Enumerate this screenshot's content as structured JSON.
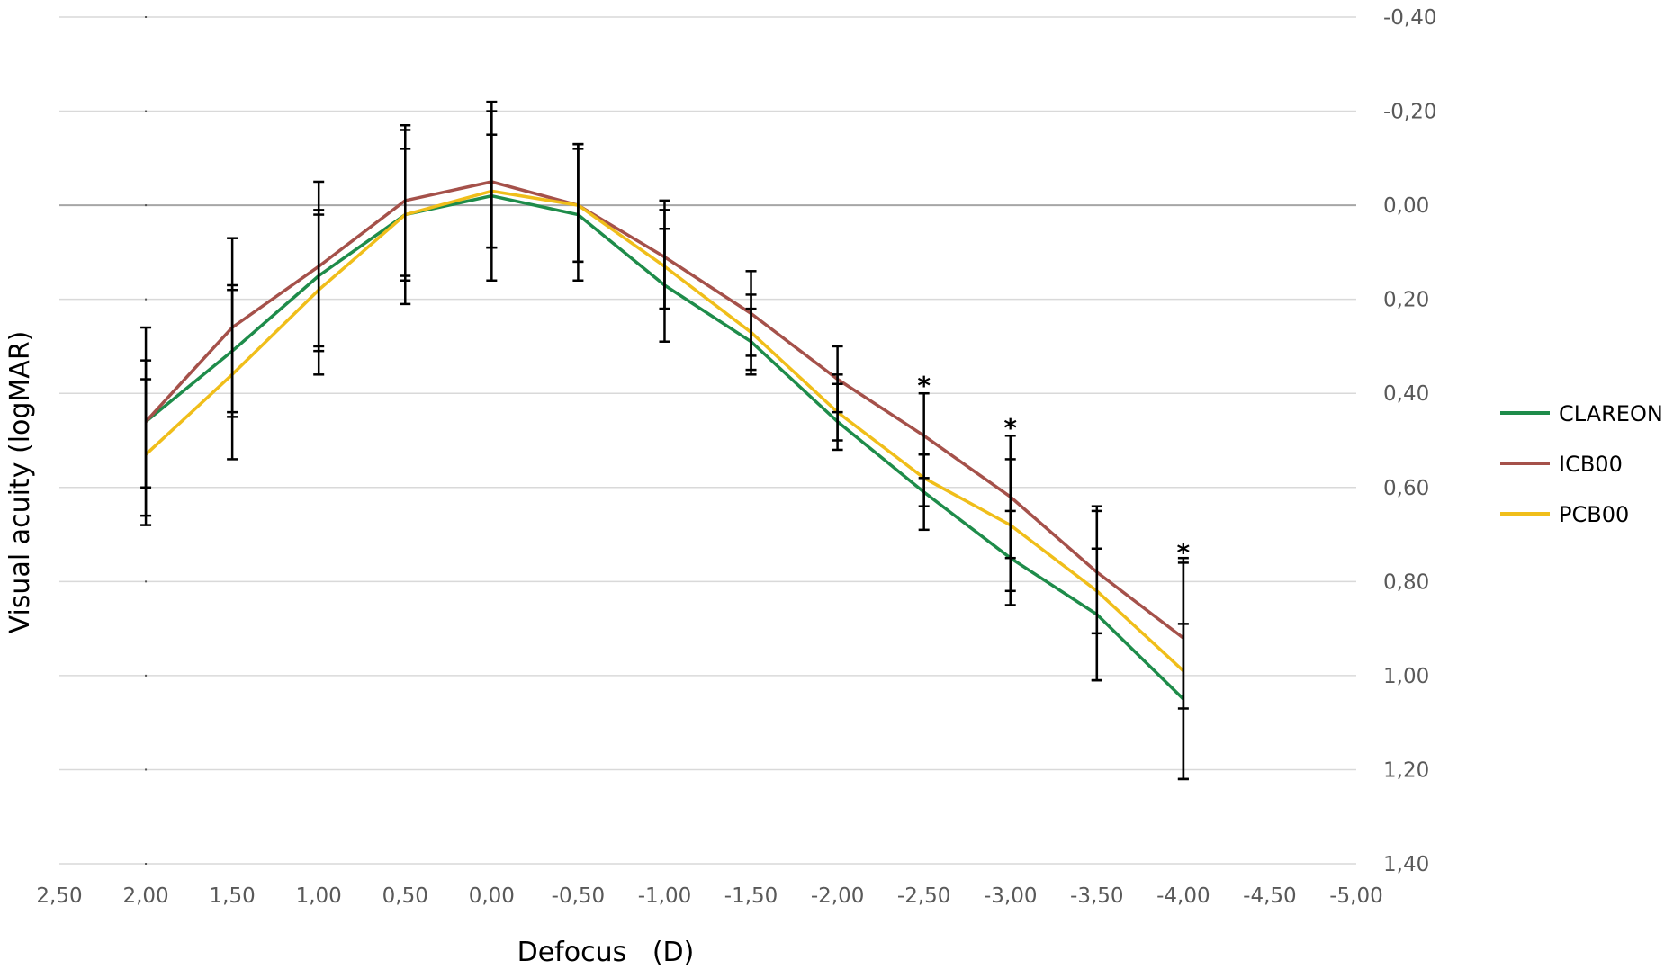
{
  "chart_data": {
    "type": "line",
    "xlabel": "Defocus   (D)",
    "ylabel": "Visual acuity (logMAR)",
    "xlim": [
      2.5,
      -5.0
    ],
    "ylim": [
      -0.4,
      1.4
    ],
    "y_inverted": true,
    "grid": true,
    "legend_position": "right",
    "x_ticks": [
      "2,50",
      "2,00",
      "1,50",
      "1,00",
      "0,50",
      "0,00",
      "-0,50",
      "-1,00",
      "-1,50",
      "-2,00",
      "-2,50",
      "-3,00",
      "-3,50",
      "-4,00",
      "-4,50",
      "-5,00"
    ],
    "x_tick_values": [
      2.5,
      2.0,
      1.5,
      1.0,
      0.5,
      0.0,
      -0.5,
      -1.0,
      -1.5,
      -2.0,
      -2.5,
      -3.0,
      -3.5,
      -4.0,
      -4.5,
      -5.0
    ],
    "y_ticks": [
      "-0,40",
      "-0,20",
      "0,00",
      "0,20",
      "0,40",
      "0,60",
      "0,80",
      "1,00",
      "1,20",
      "1,40"
    ],
    "y_tick_values": [
      -0.4,
      -0.2,
      0.0,
      0.2,
      0.4,
      0.6,
      0.8,
      1.0,
      1.2,
      1.4
    ],
    "x": [
      2.0,
      1.5,
      1.0,
      0.5,
      0.0,
      -0.5,
      -1.0,
      -1.5,
      -2.0,
      -2.5,
      -3.0,
      -3.5,
      -4.0
    ],
    "series": [
      {
        "name": "CLAREON",
        "color": "#1e8c4a",
        "values": [
          0.46,
          0.31,
          0.15,
          0.02,
          -0.02,
          0.02,
          0.17,
          0.29,
          0.46,
          0.61,
          0.75,
          0.87,
          1.05
        ],
        "err_low": [
          0.33,
          0.18,
          0.01,
          -0.16,
          -0.2,
          -0.13,
          0.05,
          0.22,
          0.38,
          0.53,
          0.65,
          0.73,
          0.89
        ],
        "err_high": [
          0.6,
          0.44,
          0.31,
          0.16,
          0.16,
          0.16,
          0.29,
          0.36,
          0.5,
          0.69,
          0.85,
          1.01,
          1.22
        ]
      },
      {
        "name": "ICB00",
        "color": "#a5514a",
        "values": [
          0.46,
          0.26,
          0.13,
          -0.01,
          -0.05,
          0.0,
          0.11,
          0.23,
          0.37,
          0.49,
          0.62,
          0.78,
          0.92
        ],
        "err_low": [
          0.26,
          0.07,
          -0.05,
          -0.17,
          -0.22,
          -0.13,
          -0.01,
          0.14,
          0.3,
          0.4,
          0.49,
          0.64,
          0.75
        ],
        "err_high": [
          0.66,
          0.45,
          0.3,
          0.15,
          0.09,
          0.12,
          0.22,
          0.32,
          0.44,
          0.58,
          0.75,
          0.91,
          1.07
        ]
      },
      {
        "name": "PCB00",
        "color": "#f0be1a",
        "values": [
          0.53,
          0.36,
          0.18,
          0.02,
          -0.03,
          0.0,
          0.13,
          0.27,
          0.44,
          0.58,
          0.68,
          0.82,
          0.99
        ],
        "err_low": [
          0.37,
          0.17,
          0.02,
          -0.12,
          -0.15,
          -0.12,
          0.01,
          0.19,
          0.36,
          0.53,
          0.54,
          0.65,
          0.76
        ],
        "err_high": [
          0.68,
          0.54,
          0.36,
          0.21,
          0.09,
          0.12,
          0.22,
          0.35,
          0.52,
          0.64,
          0.82,
          1.01,
          1.22
        ]
      }
    ],
    "annotations": [
      {
        "text": "*",
        "x": -2.5,
        "y": 0.375
      },
      {
        "text": "*",
        "x": -3.0,
        "y": 0.465
      },
      {
        "text": "*",
        "x": -4.0,
        "y": 0.73
      }
    ]
  }
}
